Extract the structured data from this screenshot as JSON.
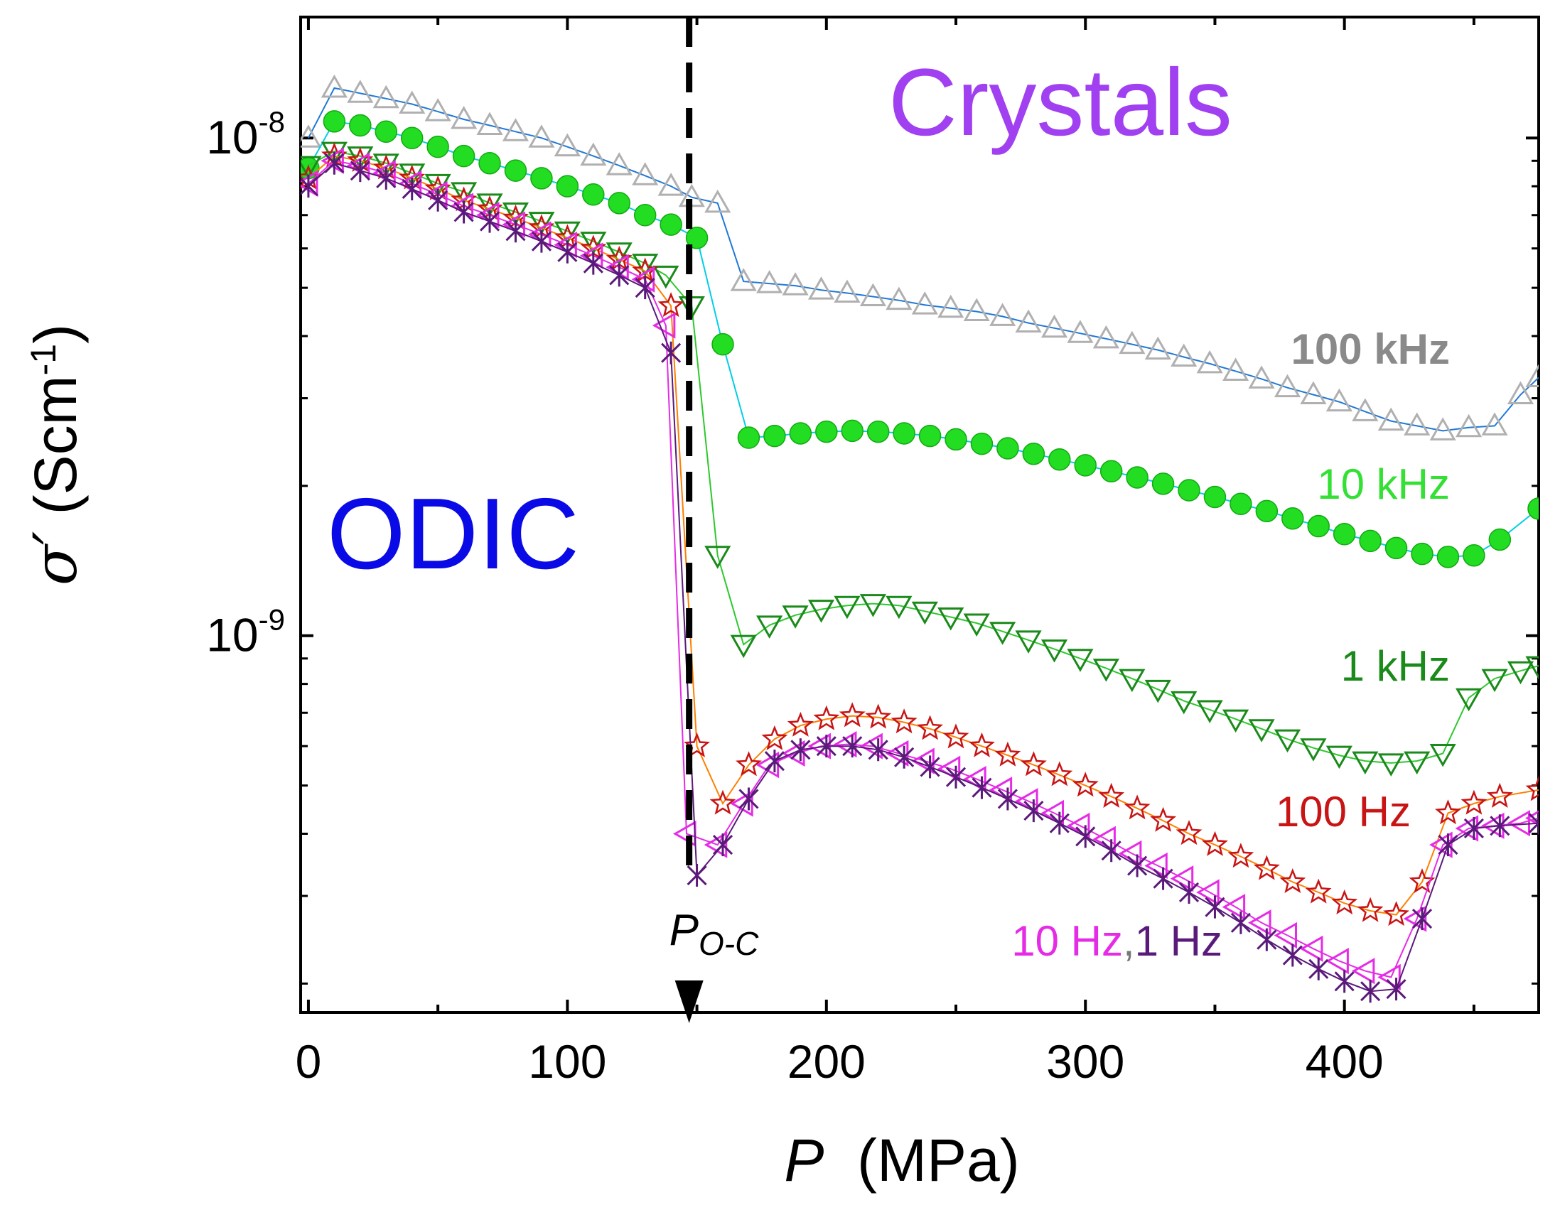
{
  "chart_data": {
    "type": "scatter",
    "title": "",
    "xlabel": "P",
    "xlabel_unit": "(MPa)",
    "ylabel_symbol": "σ′",
    "ylabel_unit": "(Scm",
    "ylabel_unit_exp": "-1",
    "ylabel_unit_close": ")",
    "yscale": "log",
    "xlim": [
      -3,
      475
    ],
    "ylim": [
      1.75e-10,
      1.75e-08
    ],
    "x_ticks": [
      0,
      100,
      200,
      300,
      400
    ],
    "x_tick_labels": [
      "0",
      "100",
      "200",
      "300",
      "400"
    ],
    "y_ticks": [
      1e-09,
      1e-08
    ],
    "y_tick_labels": [
      {
        "base": "10",
        "exp": "-9"
      },
      {
        "base": "10",
        "exp": "-8"
      }
    ],
    "transition": {
      "x": 147,
      "label_main": "P",
      "label_sub": "O-C"
    },
    "annotations": {
      "odic": {
        "text": "ODIC",
        "color": "#0a0ae6"
      },
      "crystals": {
        "text": "Crystals",
        "color": "#a040f0"
      }
    },
    "series": [
      {
        "name": "100 kHz",
        "color": "#b0b0b0",
        "line_color": "#1f78d8",
        "marker": "triangle-up",
        "x": [
          0,
          10,
          20,
          30,
          40,
          50,
          60,
          70,
          80,
          90,
          100,
          110,
          120,
          130,
          140,
          148,
          158,
          168,
          178,
          188,
          198,
          208,
          218,
          228,
          238,
          248,
          258,
          268,
          278,
          288,
          298,
          308,
          318,
          328,
          338,
          348,
          358,
          368,
          378,
          388,
          398,
          408,
          418,
          428,
          438,
          448,
          458,
          468,
          475
        ],
        "values": [
          1e-08,
          1.26e-08,
          1.23e-08,
          1.2e-08,
          1.17e-08,
          1.13e-08,
          1.09e-08,
          1.06e-08,
          1.03e-08,
          1e-08,
          9.6e-09,
          9.2e-09,
          8.8e-09,
          8.4e-09,
          8e-09,
          7.6e-09,
          7.4e-09,
          5.15e-09,
          5.1e-09,
          5.05e-09,
          4.95e-09,
          4.88e-09,
          4.8e-09,
          4.72e-09,
          4.62e-09,
          4.55e-09,
          4.48e-09,
          4.38e-09,
          4.25e-09,
          4.15e-09,
          4.05e-09,
          3.95e-09,
          3.85e-09,
          3.75e-09,
          3.63e-09,
          3.52e-09,
          3.4e-09,
          3.28e-09,
          3.15e-09,
          3.05e-09,
          2.95e-09,
          2.82e-09,
          2.7e-09,
          2.64e-09,
          2.58e-09,
          2.62e-09,
          2.64e-09,
          3.05e-09,
          3.3e-09
        ]
      },
      {
        "name": "10 kHz",
        "color": "#22dd22",
        "line_color": "#00cfe6",
        "marker": "circle",
        "x": [
          0,
          10,
          20,
          30,
          40,
          50,
          60,
          70,
          80,
          90,
          100,
          110,
          120,
          130,
          140,
          150,
          160,
          170,
          180,
          190,
          200,
          210,
          220,
          230,
          240,
          250,
          260,
          270,
          280,
          290,
          300,
          310,
          320,
          330,
          340,
          350,
          360,
          370,
          380,
          390,
          400,
          410,
          420,
          430,
          440,
          450,
          460,
          475
        ],
        "values": [
          8.7e-09,
          1.08e-08,
          1.06e-08,
          1.03e-08,
          1e-08,
          9.6e-09,
          9.2e-09,
          8.9e-09,
          8.6e-09,
          8.3e-09,
          8e-09,
          7.7e-09,
          7.4e-09,
          7e-09,
          6.7e-09,
          6.3e-09,
          3.85e-09,
          2.5e-09,
          2.52e-09,
          2.55e-09,
          2.57e-09,
          2.58e-09,
          2.57e-09,
          2.55e-09,
          2.52e-09,
          2.48e-09,
          2.43e-09,
          2.38e-09,
          2.32e-09,
          2.26e-09,
          2.2e-09,
          2.14e-09,
          2.08e-09,
          2.02e-09,
          1.96e-09,
          1.9e-09,
          1.84e-09,
          1.78e-09,
          1.72e-09,
          1.66e-09,
          1.6e-09,
          1.55e-09,
          1.5e-09,
          1.46e-09,
          1.44e-09,
          1.45e-09,
          1.56e-09,
          1.8e-09
        ]
      },
      {
        "name": "1 kHz",
        "color": "#1a8a1a",
        "line_color": "#2dc82d",
        "marker": "triangle-down",
        "x": [
          0,
          10,
          20,
          30,
          40,
          50,
          60,
          70,
          80,
          90,
          100,
          110,
          120,
          130,
          138,
          148,
          158,
          168,
          178,
          188,
          198,
          208,
          218,
          228,
          238,
          248,
          258,
          268,
          278,
          288,
          298,
          308,
          318,
          328,
          338,
          348,
          358,
          368,
          378,
          388,
          398,
          408,
          418,
          428,
          438,
          448,
          458,
          468,
          475
        ],
        "values": [
          8.8e-09,
          9.4e-09,
          9.2e-09,
          8.9e-09,
          8.5e-09,
          8.1e-09,
          7.8e-09,
          7.4e-09,
          7.1e-09,
          6.8e-09,
          6.5e-09,
          6.2e-09,
          5.9e-09,
          5.6e-09,
          5.3e-09,
          4.6e-09,
          1.45e-09,
          9.6e-10,
          1.05e-09,
          1.1e-09,
          1.13e-09,
          1.15e-09,
          1.16e-09,
          1.15e-09,
          1.12e-09,
          1.09e-09,
          1.06e-09,
          1.02e-09,
          9.8e-10,
          9.4e-10,
          9e-10,
          8.6e-10,
          8.2e-10,
          7.8e-10,
          7.4e-10,
          7.1e-10,
          6.8e-10,
          6.5e-10,
          6.2e-10,
          5.95e-10,
          5.75e-10,
          5.6e-10,
          5.55e-10,
          5.6e-10,
          5.8e-10,
          7.5e-10,
          8.2e-10,
          8.5e-10,
          8.7e-10
        ]
      },
      {
        "name": "100 Hz",
        "color": "#c81414",
        "line_color": "#ff7f00",
        "marker": "star",
        "x": [
          0,
          10,
          20,
          30,
          40,
          50,
          60,
          70,
          80,
          90,
          100,
          110,
          120,
          130,
          140,
          150,
          160,
          170,
          180,
          190,
          200,
          210,
          220,
          230,
          240,
          250,
          260,
          270,
          280,
          290,
          300,
          310,
          320,
          330,
          340,
          350,
          360,
          370,
          380,
          390,
          400,
          410,
          420,
          430,
          440,
          450,
          460,
          475
        ],
        "values": [
          8.3e-09,
          9.2e-09,
          9e-09,
          8.7e-09,
          8.3e-09,
          7.9e-09,
          7.5e-09,
          7.2e-09,
          6.9e-09,
          6.6e-09,
          6.3e-09,
          6e-09,
          5.7e-09,
          5.4e-09,
          4.6e-09,
          6e-10,
          4.6e-10,
          5.5e-10,
          6.2e-10,
          6.6e-10,
          6.8e-10,
          6.9e-10,
          6.85e-10,
          6.7e-10,
          6.5e-10,
          6.25e-10,
          6e-10,
          5.75e-10,
          5.5e-10,
          5.25e-10,
          5e-10,
          4.75e-10,
          4.5e-10,
          4.25e-10,
          4e-10,
          3.8e-10,
          3.6e-10,
          3.4e-10,
          3.2e-10,
          3.05e-10,
          2.9e-10,
          2.8e-10,
          2.75e-10,
          3.2e-10,
          4.4e-10,
          4.6e-10,
          4.75e-10,
          4.9e-10
        ]
      },
      {
        "name": "10 Hz",
        "color": "#e62be6",
        "line_color": "#e62be6",
        "marker": "triangle-left",
        "x": [
          0,
          10,
          20,
          30,
          40,
          50,
          60,
          70,
          80,
          90,
          100,
          110,
          120,
          130,
          138,
          146,
          158,
          168,
          178,
          188,
          198,
          208,
          218,
          228,
          238,
          248,
          258,
          268,
          278,
          288,
          298,
          308,
          318,
          328,
          338,
          348,
          358,
          368,
          378,
          388,
          398,
          408,
          418,
          428,
          438,
          448,
          458,
          468,
          475
        ],
        "values": [
          8.1e-09,
          9e-09,
          8.8e-09,
          8.5e-09,
          8.1e-09,
          7.7e-09,
          7.3e-09,
          7e-09,
          6.7e-09,
          6.4e-09,
          6.1e-09,
          5.8e-09,
          5.5e-09,
          5.2e-09,
          4.2e-09,
          4e-10,
          3.8e-10,
          4.6e-10,
          5.5e-10,
          5.8e-10,
          6e-10,
          6.05e-10,
          6e-10,
          5.8e-10,
          5.6e-10,
          5.4e-10,
          5.15e-10,
          4.9e-10,
          4.65e-10,
          4.4e-10,
          4.15e-10,
          3.9e-10,
          3.65e-10,
          3.45e-10,
          3.25e-10,
          3.05e-10,
          2.85e-10,
          2.65e-10,
          2.5e-10,
          2.35e-10,
          2.22e-10,
          2.12e-10,
          2.06e-10,
          2.7e-10,
          3.8e-10,
          4.1e-10,
          4.15e-10,
          4.2e-10,
          4.3e-10
        ]
      },
      {
        "name": "1 Hz",
        "color": "#5a1a7a",
        "line_color": "#5a1a7a",
        "marker": "asterisk",
        "x": [
          0,
          10,
          20,
          30,
          40,
          50,
          60,
          70,
          80,
          90,
          100,
          110,
          120,
          130,
          140,
          150,
          160,
          170,
          180,
          190,
          200,
          210,
          220,
          230,
          240,
          250,
          260,
          270,
          280,
          290,
          300,
          310,
          320,
          330,
          340,
          350,
          360,
          370,
          380,
          390,
          400,
          410,
          420,
          430,
          440,
          450,
          460,
          475
        ],
        "values": [
          8e-09,
          8.9e-09,
          8.6e-09,
          8.3e-09,
          7.9e-09,
          7.5e-09,
          7.1e-09,
          6.8e-09,
          6.5e-09,
          6.2e-09,
          5.9e-09,
          5.6e-09,
          5.3e-09,
          5e-09,
          3.7e-09,
          3.3e-10,
          3.8e-10,
          4.7e-10,
          5.6e-10,
          5.9e-10,
          6e-10,
          6e-10,
          5.9e-10,
          5.7e-10,
          5.45e-10,
          5.2e-10,
          4.95e-10,
          4.7e-10,
          4.45e-10,
          4.2e-10,
          3.95e-10,
          3.7e-10,
          3.45e-10,
          3.25e-10,
          3.05e-10,
          2.85e-10,
          2.65e-10,
          2.45e-10,
          2.28e-10,
          2.14e-10,
          2.02e-10,
          1.93e-10,
          1.95e-10,
          2.7e-10,
          3.8e-10,
          4.1e-10,
          4.15e-10,
          4.2e-10
        ]
      }
    ],
    "series_labels": [
      {
        "text": "100 kHz",
        "color": "#8a8a8a"
      },
      {
        "text": "10 kHz",
        "color": "#33e033"
      },
      {
        "text": "1 kHz",
        "color": "#1a8a1a"
      },
      {
        "text": "100 Hz",
        "color": "#c81414"
      },
      {
        "text": "10 Hz",
        "color": "#e62be6",
        "suffix": ",",
        "second": "1 Hz",
        "second_color": "#5a1a7a"
      }
    ]
  }
}
